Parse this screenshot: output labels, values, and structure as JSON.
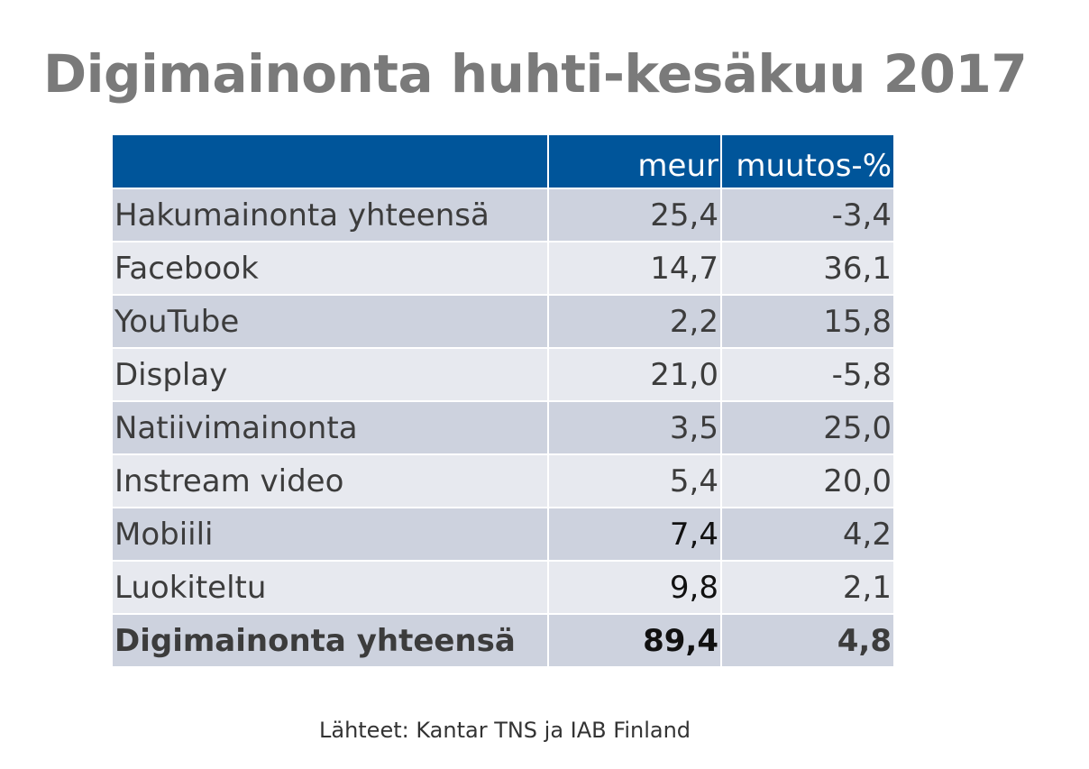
{
  "title": "Digimainonta huhti-kesäkuu 2017",
  "source": "Lähteet: Kantar TNS ja IAB Finland",
  "colors": {
    "header_bg": "#00559a",
    "row_dark": "#cdd2de",
    "row_light": "#e7e9ef",
    "title": "#7a7a7a"
  },
  "chart_data": {
    "type": "table",
    "title": "Digimainonta huhti-kesäkuu 2017",
    "columns": [
      "",
      "meur",
      "muutos-%"
    ],
    "rows": [
      {
        "label": "Hakumainonta yhteensä",
        "meur": "25,4",
        "change": "-3,4"
      },
      {
        "label": "Facebook",
        "meur": "14,7",
        "change": "36,1"
      },
      {
        "label": "YouTube",
        "meur": "2,2",
        "change": "15,8"
      },
      {
        "label": "Display",
        "meur": "21,0",
        "change": "-5,8"
      },
      {
        "label": "Natiivimainonta",
        "meur": "3,5",
        "change": "25,0"
      },
      {
        "label": "Instream video",
        "meur": "5,4",
        "change": "20,0"
      },
      {
        "label": "Mobiili",
        "meur": "7,4",
        "change": "4,2"
      },
      {
        "label": "Luokiteltu",
        "meur": "9,8",
        "change": "2,1"
      }
    ],
    "total": {
      "label": "Digimainonta yhteensä",
      "meur": "89,4",
      "change": "4,8"
    }
  }
}
